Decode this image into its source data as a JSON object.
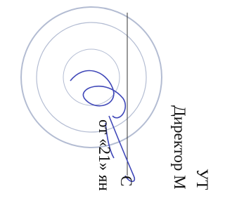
{
  "document": {
    "lines": [
      "УТ",
      "Директор М",
      "С",
      "от «21» ян"
    ]
  }
}
